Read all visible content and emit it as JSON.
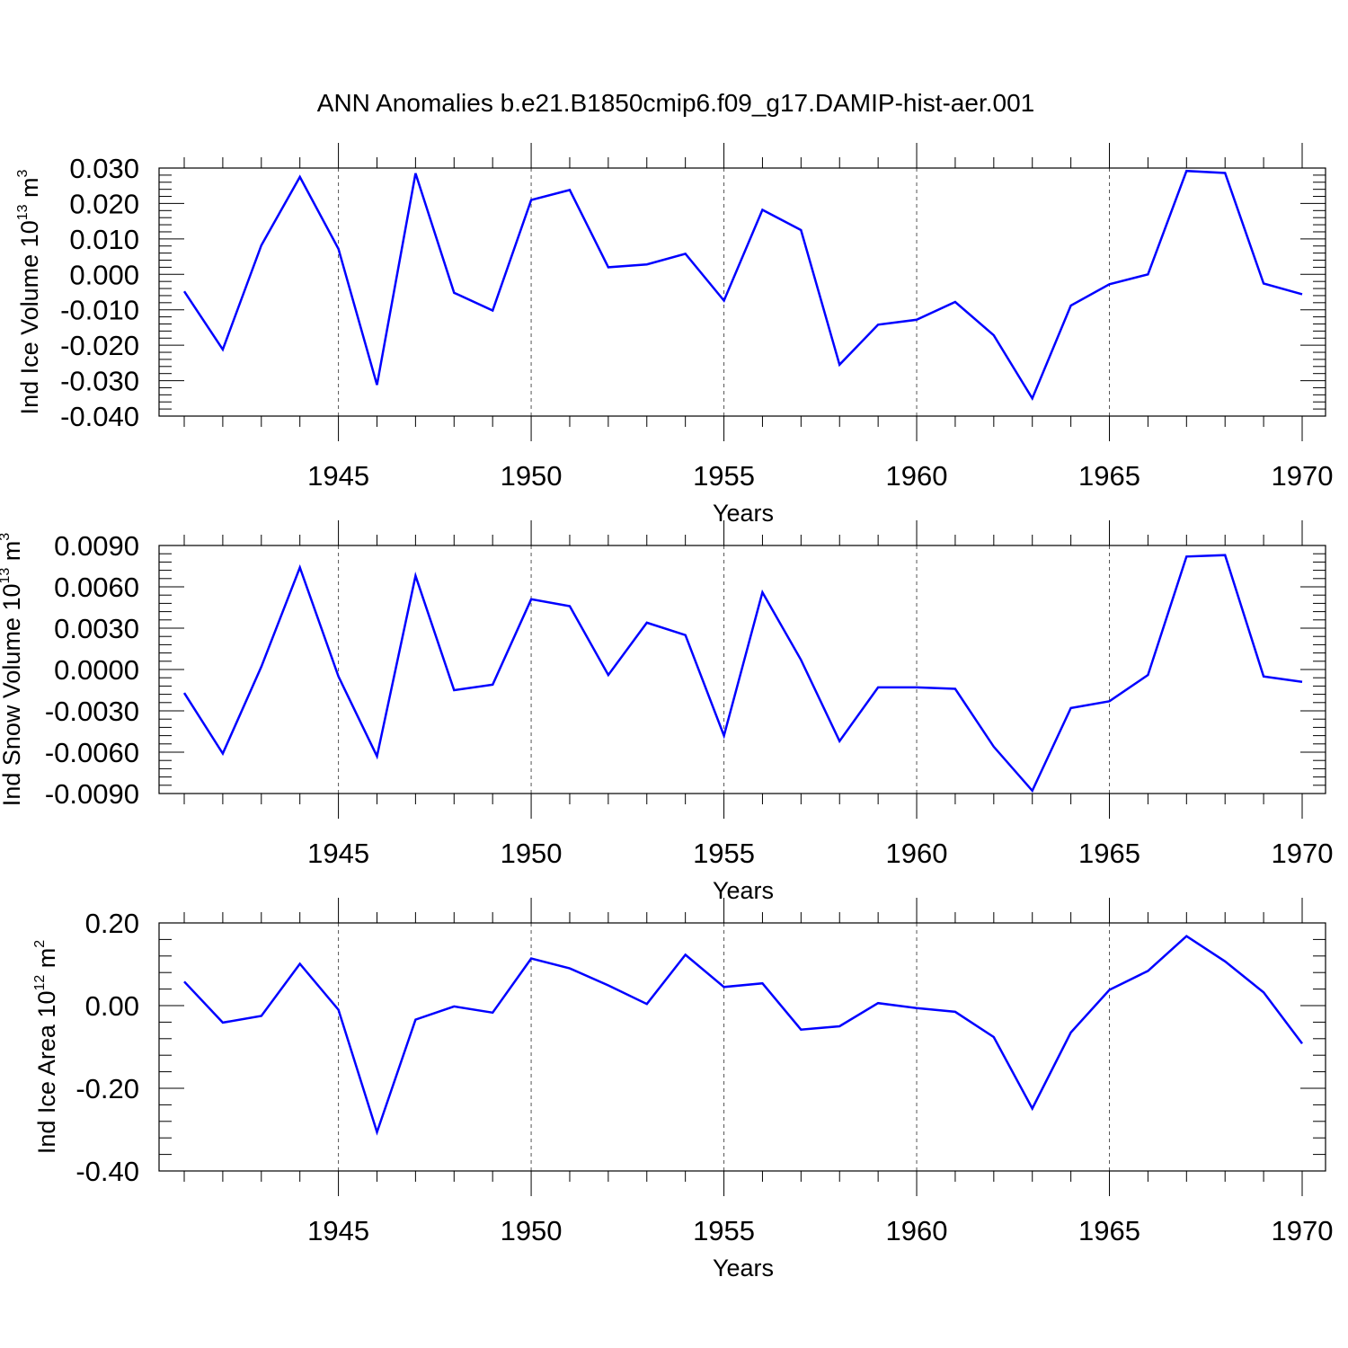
{
  "figure": {
    "title": "ANN Anomalies b.e21.B1850cmip6.f09_g17.DAMIP-hist-aer.001",
    "line_color": "#0000ff"
  },
  "chart_data": [
    {
      "type": "line",
      "name": "ice-volume",
      "xlabel": "Years",
      "ylabel_main": "Ind Ice Volume 10",
      "ylabel_exp": "13",
      "ylabel_unit": "m",
      "ylabel_unit_exp": "3",
      "xlim": [
        1941,
        1970
      ],
      "ylim": [
        -0.04,
        0.03
      ],
      "yticks": [
        -0.04,
        -0.03,
        -0.02,
        -0.01,
        0.0,
        0.01,
        0.02,
        0.03
      ],
      "ytick_labels": [
        "-0.040",
        "-0.030",
        "-0.020",
        "-0.010",
        "0.000",
        "0.010",
        "0.020",
        "0.030"
      ],
      "xticks": [
        1945,
        1950,
        1955,
        1960,
        1965,
        1970
      ],
      "xtick_labels": [
        "1945",
        "1950",
        "1955",
        "1960",
        "1965",
        "1970"
      ],
      "grid": "dashed vertical at major x ticks",
      "x": [
        1941,
        1942,
        1943,
        1944,
        1945,
        1946,
        1947,
        1948,
        1949,
        1950,
        1951,
        1952,
        1953,
        1954,
        1955,
        1956,
        1957,
        1958,
        1959,
        1960,
        1961,
        1962,
        1963,
        1964,
        1965,
        1966,
        1967,
        1968,
        1969,
        1970
      ],
      "values": [
        -0.0048,
        -0.0212,
        0.0082,
        0.0275,
        0.0072,
        -0.0312,
        0.0285,
        -0.0052,
        -0.0102,
        0.021,
        0.0238,
        0.002,
        0.0028,
        0.0058,
        -0.0074,
        0.0182,
        0.0125,
        -0.0255,
        -0.0142,
        -0.0128,
        -0.0078,
        -0.0172,
        -0.035,
        -0.0088,
        -0.0028,
        0.0,
        0.0292,
        0.0286,
        -0.0026,
        -0.0056
      ]
    },
    {
      "type": "line",
      "name": "snow-volume",
      "xlabel": "Years",
      "ylabel_main": "Ind Snow Volume 10",
      "ylabel_exp": "13",
      "ylabel_unit": "m",
      "ylabel_unit_exp": "3",
      "xlim": [
        1941,
        1970
      ],
      "ylim": [
        -0.009,
        0.009
      ],
      "yticks": [
        -0.009,
        -0.006,
        -0.003,
        0.0,
        0.003,
        0.006,
        0.009
      ],
      "ytick_labels": [
        "-0.0090",
        "-0.0060",
        "-0.0030",
        "0.0000",
        "0.0030",
        "0.0060",
        "0.0090"
      ],
      "xticks": [
        1945,
        1950,
        1955,
        1960,
        1965,
        1970
      ],
      "xtick_labels": [
        "1945",
        "1950",
        "1955",
        "1960",
        "1965",
        "1970"
      ],
      "grid": "dashed vertical at major x ticks",
      "x": [
        1941,
        1942,
        1943,
        1944,
        1945,
        1946,
        1947,
        1948,
        1949,
        1950,
        1951,
        1952,
        1953,
        1954,
        1955,
        1956,
        1957,
        1958,
        1959,
        1960,
        1961,
        1962,
        1963,
        1964,
        1965,
        1966,
        1967,
        1968,
        1969,
        1970
      ],
      "values": [
        -0.0017,
        -0.0061,
        0.0002,
        0.0074,
        -0.0005,
        -0.0063,
        0.0068,
        -0.0015,
        -0.0011,
        0.0051,
        0.0046,
        -0.0004,
        0.0034,
        0.0025,
        -0.0048,
        0.0056,
        0.0007,
        -0.0052,
        -0.0013,
        -0.0013,
        -0.0014,
        -0.0056,
        -0.0088,
        -0.0028,
        -0.0023,
        -0.0004,
        0.0082,
        0.0083,
        -0.0005,
        -0.0009
      ]
    },
    {
      "type": "line",
      "name": "ice-area",
      "xlabel": "Years",
      "ylabel_main": "Ind Ice Area 10",
      "ylabel_exp": "12",
      "ylabel_unit": "m",
      "ylabel_unit_exp": "2",
      "xlim": [
        1941,
        1970
      ],
      "ylim": [
        -0.4,
        0.2
      ],
      "yticks": [
        -0.4,
        -0.2,
        0.0,
        0.2
      ],
      "ytick_labels": [
        "-0.40",
        "-0.20",
        "0.00",
        "0.20"
      ],
      "xticks": [
        1945,
        1950,
        1955,
        1960,
        1965,
        1970
      ],
      "xtick_labels": [
        "1945",
        "1950",
        "1955",
        "1960",
        "1965",
        "1970"
      ],
      "grid": "dashed vertical at major x ticks",
      "x": [
        1941,
        1942,
        1943,
        1944,
        1945,
        1946,
        1947,
        1948,
        1949,
        1950,
        1951,
        1952,
        1953,
        1954,
        1955,
        1956,
        1957,
        1958,
        1959,
        1960,
        1961,
        1962,
        1963,
        1964,
        1965,
        1966,
        1967,
        1968,
        1969,
        1970
      ],
      "values": [
        0.058,
        -0.041,
        -0.025,
        0.101,
        -0.01,
        -0.306,
        -0.034,
        -0.002,
        -0.017,
        0.114,
        0.09,
        0.049,
        0.004,
        0.123,
        0.045,
        0.054,
        -0.058,
        -0.05,
        0.006,
        -0.006,
        -0.015,
        -0.076,
        -0.249,
        -0.065,
        0.038,
        0.084,
        0.168,
        0.107,
        0.032,
        -0.092
      ]
    }
  ]
}
